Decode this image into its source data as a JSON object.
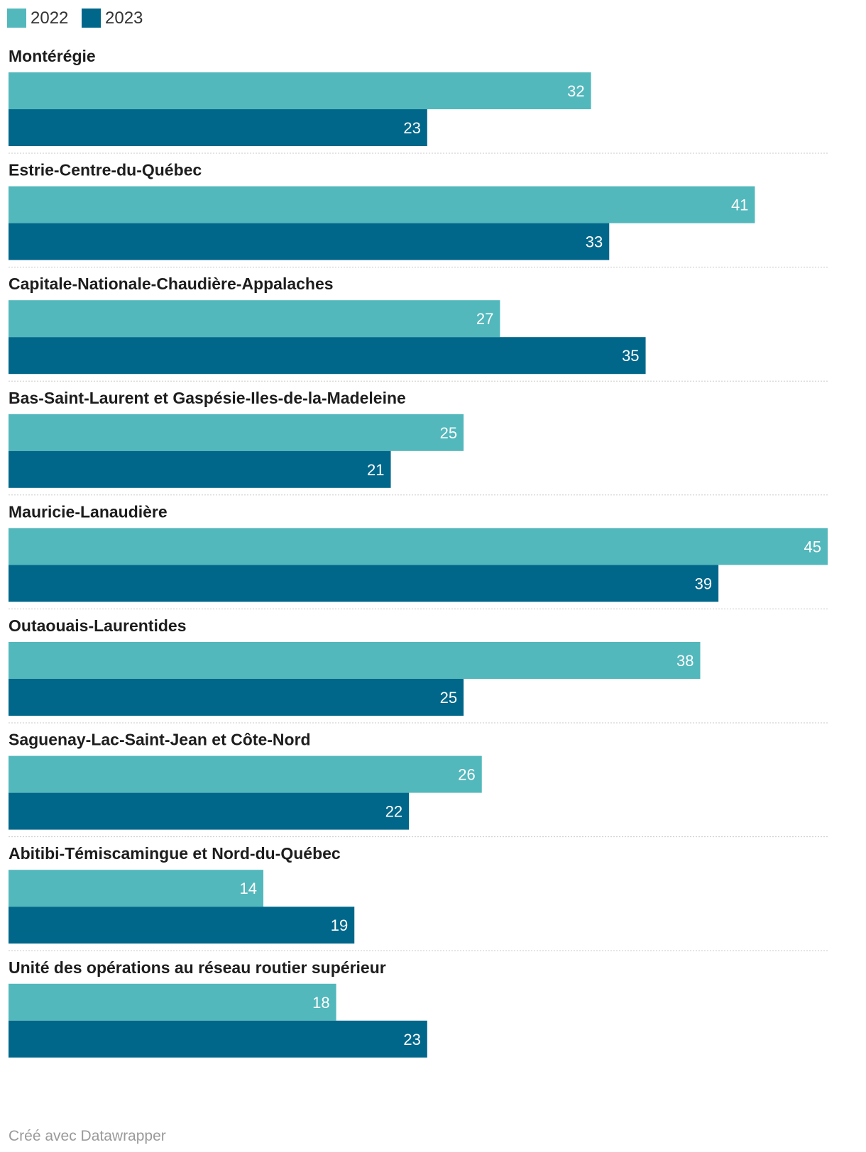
{
  "chart_data": {
    "type": "bar",
    "orientation": "horizontal",
    "categories": [
      "Montérégie",
      "Estrie-Centre-du-Québec",
      "Capitale-Nationale-Chaudière-Appalaches",
      "Bas-Saint-Laurent et Gaspésie-Iles-de-la-Madeleine",
      "Mauricie-Lanaudière",
      "Outaouais-Laurentides",
      "Saguenay-Lac-Saint-Jean et Côte-Nord",
      "Abitibi-Témiscamingue et Nord-du-Québec",
      "Unité des opérations au réseau routier supérieur"
    ],
    "series": [
      {
        "name": "2022",
        "color": "#52b8bc",
        "values": [
          32,
          41,
          27,
          25,
          45,
          38,
          26,
          14,
          18
        ]
      },
      {
        "name": "2023",
        "color": "#00678a",
        "values": [
          23,
          33,
          35,
          21,
          39,
          25,
          22,
          19,
          23
        ]
      }
    ],
    "xlim": [
      0,
      45
    ],
    "legend": "top-left",
    "grid": false
  },
  "footer": {
    "credit": "Créé avec Datawrapper"
  }
}
